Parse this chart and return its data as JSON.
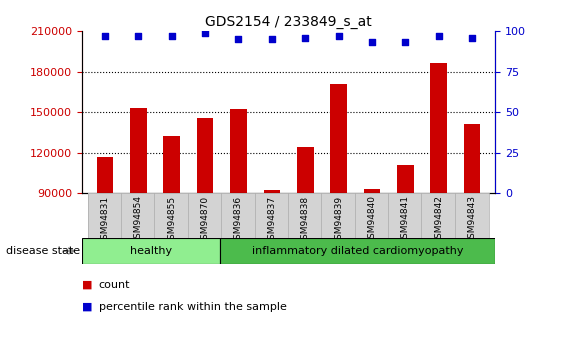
{
  "title": "GDS2154 / 233849_s_at",
  "samples": [
    "GSM94831",
    "GSM94854",
    "GSM94855",
    "GSM94870",
    "GSM94836",
    "GSM94837",
    "GSM94838",
    "GSM94839",
    "GSM94840",
    "GSM94841",
    "GSM94842",
    "GSM94843"
  ],
  "counts": [
    117000,
    153000,
    132000,
    146000,
    152000,
    92000,
    124000,
    171000,
    93000,
    111000,
    186000,
    141000
  ],
  "percentile_ranks": [
    97,
    97,
    97,
    99,
    95,
    95,
    96,
    97,
    93,
    93,
    97,
    96
  ],
  "disease_states": [
    "healthy",
    "healthy",
    "healthy",
    "healthy",
    "inflammatory dilated cardiomyopathy",
    "inflammatory dilated cardiomyopathy",
    "inflammatory dilated cardiomyopathy",
    "inflammatory dilated cardiomyopathy",
    "inflammatory dilated cardiomyopathy",
    "inflammatory dilated cardiomyopathy",
    "inflammatory dilated cardiomyopathy",
    "inflammatory dilated cardiomyopathy"
  ],
  "healthy_color": "#90EE90",
  "bar_color": "#CC0000",
  "dot_color": "#0000CC",
  "ylim_left": [
    90000,
    210000
  ],
  "ylim_right": [
    0,
    100
  ],
  "yticks_left": [
    90000,
    120000,
    150000,
    180000,
    210000
  ],
  "yticks_right": [
    0,
    25,
    50,
    75,
    100
  ],
  "grid_values": [
    120000,
    150000,
    180000
  ],
  "background_color": "#ffffff",
  "label_fontsize": 6.5,
  "title_fontsize": 10,
  "tick_label_color_left": "#CC0000",
  "tick_label_color_right": "#0000CC",
  "disease_state_label": "disease state",
  "healthy_label": "healthy",
  "idcm_label": "inflammatory dilated cardiomyopathy",
  "legend_count": "count",
  "legend_percentile": "percentile rank within the sample",
  "healthy_count": 4,
  "idcm_count": 8
}
